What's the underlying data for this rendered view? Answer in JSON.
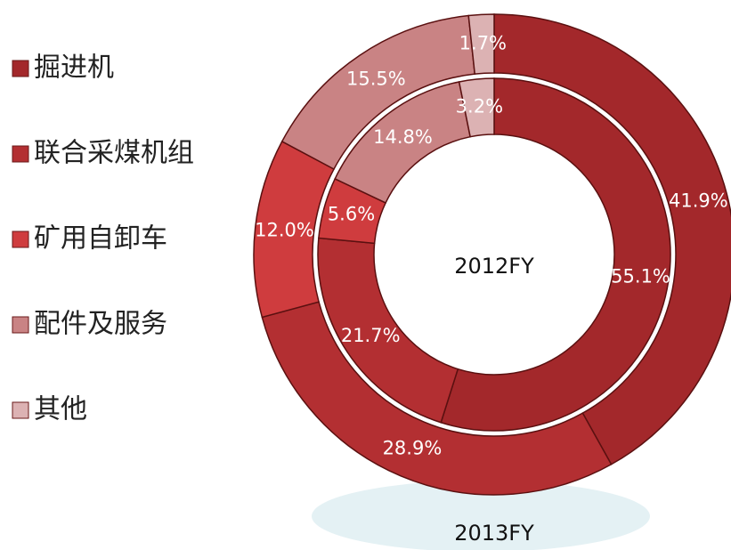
{
  "chart_data": {
    "type": "donut",
    "categories": [
      "掘进机",
      "联合采煤机组",
      "矿用自卸车",
      "配件及服务",
      "其他"
    ],
    "colors": [
      "#a3282b",
      "#b32f32",
      "#cf3c3e",
      "#c98384",
      "#dcb2b3"
    ],
    "series": [
      {
        "name": "2012FY",
        "values": [
          55.1,
          21.7,
          5.6,
          14.8,
          3.2
        ],
        "value_labels": [
          "55.1%",
          "21.7%",
          "5.6%",
          "14.8%",
          "3.2%"
        ]
      },
      {
        "name": "2013FY",
        "values": [
          41.9,
          28.9,
          12.0,
          15.5,
          1.7
        ],
        "value_labels": [
          "41.9%",
          "28.9%",
          "12.0%",
          "15.5%",
          "1.7%"
        ]
      }
    ]
  }
}
